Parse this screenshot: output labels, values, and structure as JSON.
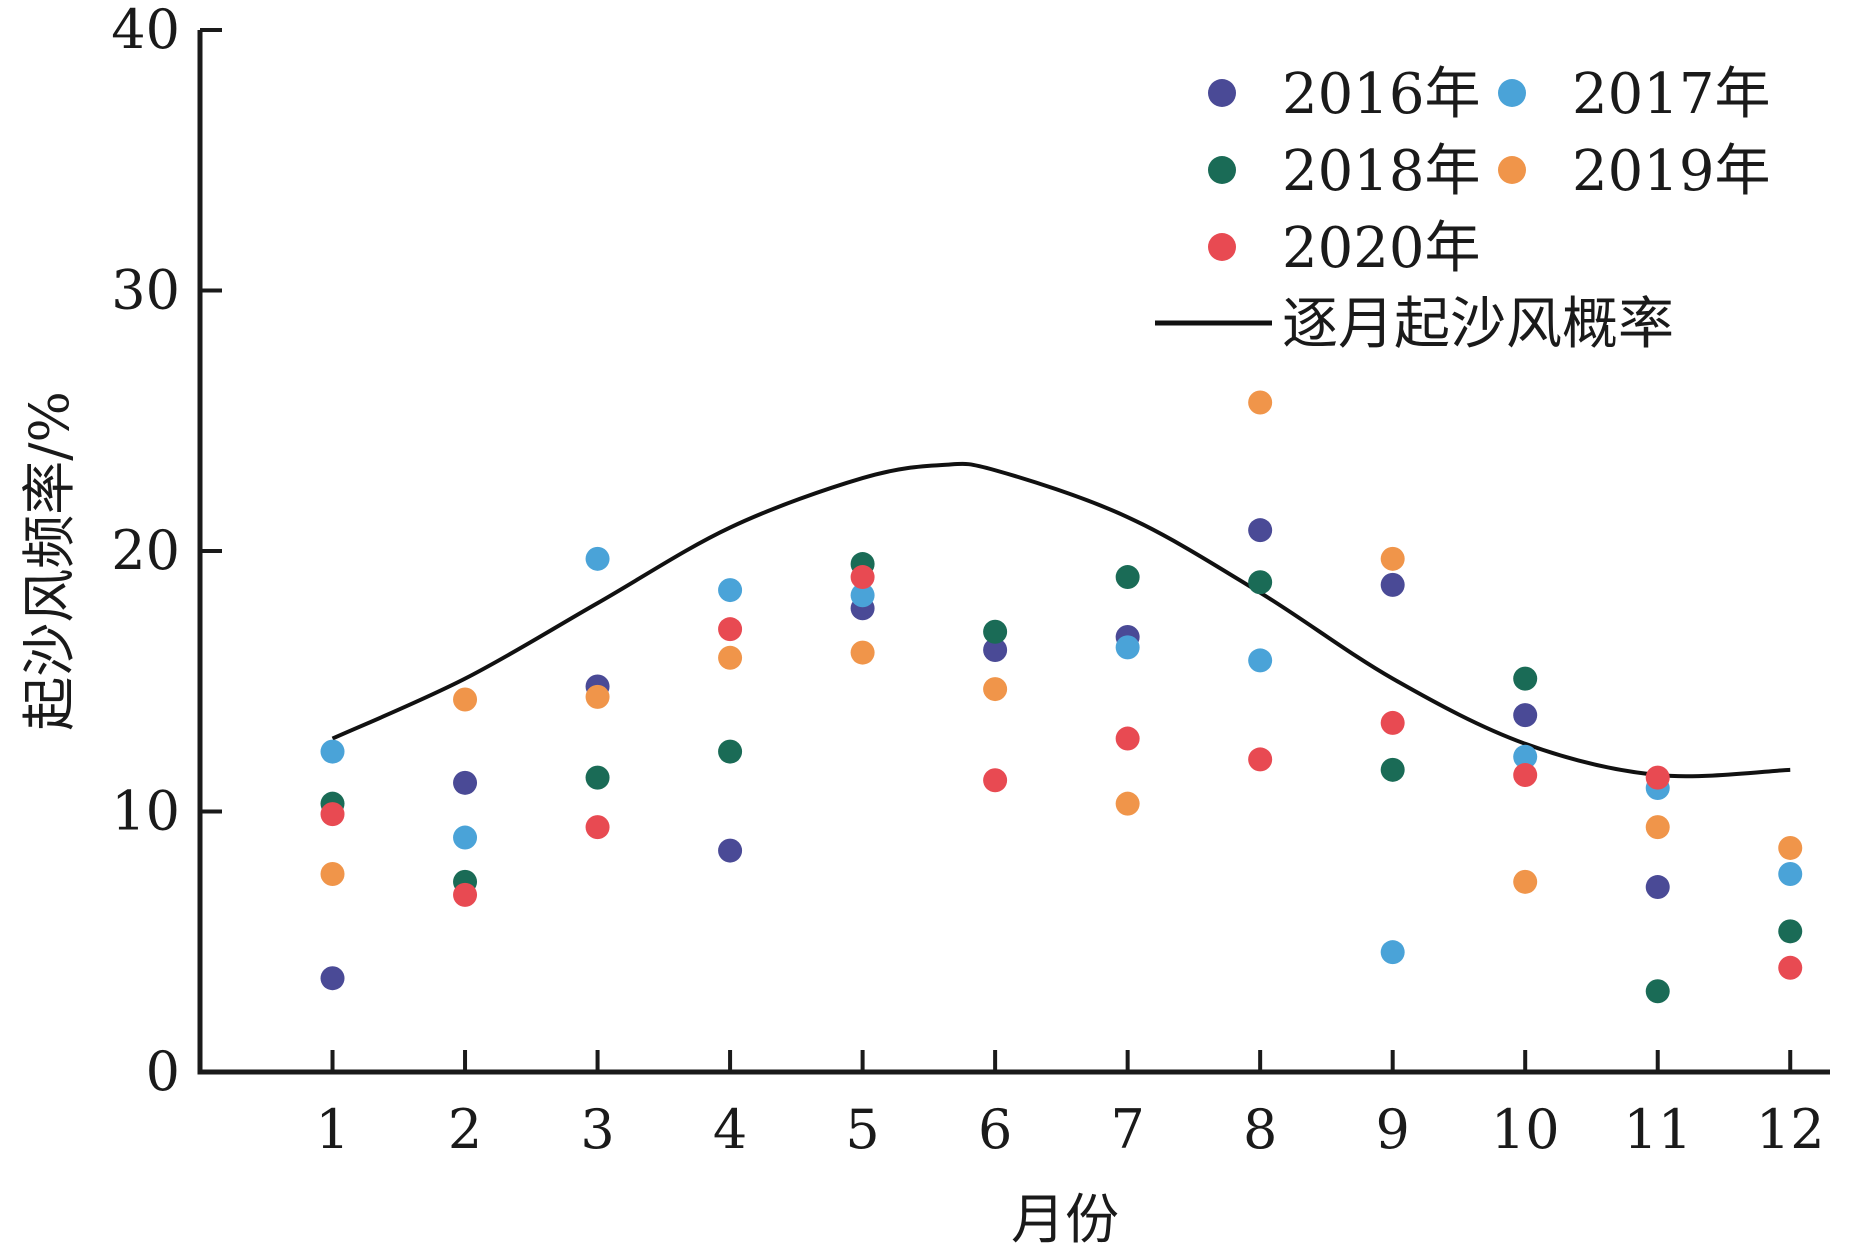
{
  "chart_data": {
    "type": "scatter",
    "xlabel": "月份",
    "ylabel": "起沙风频率/%",
    "xlim": [
      0,
      12.3
    ],
    "ylim": [
      0,
      40
    ],
    "x_ticks": [
      1,
      2,
      3,
      4,
      5,
      6,
      7,
      8,
      9,
      10,
      11,
      12
    ],
    "y_ticks": [
      0,
      10,
      20,
      30,
      40
    ],
    "legend_position": "top-right",
    "series": [
      {
        "name": "2016年",
        "color": "#4a4a96",
        "marker": "circle",
        "x": [
          1,
          2,
          3,
          4,
          5,
          6,
          7,
          8,
          9,
          10,
          11,
          12
        ],
        "y": [
          3.6,
          11.1,
          14.8,
          8.5,
          17.8,
          16.2,
          16.7,
          20.8,
          18.7,
          13.7,
          7.1,
          null
        ]
      },
      {
        "name": "2017年",
        "color": "#4aa3d8",
        "marker": "circle",
        "x": [
          1,
          2,
          3,
          4,
          5,
          6,
          7,
          8,
          9,
          10,
          11,
          12
        ],
        "y": [
          12.3,
          9.0,
          19.7,
          18.5,
          18.3,
          null,
          16.3,
          15.8,
          4.6,
          12.1,
          10.9,
          7.6
        ]
      },
      {
        "name": "2018年",
        "color": "#1a6b56",
        "marker": "circle",
        "x": [
          1,
          2,
          3,
          4,
          5,
          6,
          7,
          8,
          9,
          10,
          11,
          12
        ],
        "y": [
          10.3,
          7.3,
          11.3,
          12.3,
          19.5,
          16.9,
          19.0,
          18.8,
          11.6,
          15.1,
          3.1,
          5.4
        ]
      },
      {
        "name": "2019年",
        "color": "#f0954a",
        "marker": "circle",
        "x": [
          1,
          2,
          3,
          4,
          5,
          6,
          7,
          8,
          9,
          10,
          11,
          12
        ],
        "y": [
          7.6,
          14.3,
          14.4,
          15.9,
          16.1,
          14.7,
          10.3,
          25.7,
          19.7,
          7.3,
          9.4,
          8.6
        ]
      },
      {
        "name": "2020年",
        "color": "#e84a52",
        "marker": "circle",
        "x": [
          1,
          2,
          3,
          4,
          5,
          6,
          7,
          8,
          9,
          10,
          11,
          12
        ],
        "y": [
          9.9,
          6.8,
          9.4,
          17.0,
          19.0,
          11.2,
          12.8,
          12.0,
          13.4,
          11.4,
          11.3,
          4.0
        ]
      },
      {
        "name": "逐月起沙风概率",
        "color": "#111111",
        "marker": "line",
        "x": [
          1,
          2,
          3,
          4,
          5,
          5.6,
          6,
          7,
          8,
          9,
          10,
          11,
          12
        ],
        "y": [
          12.8,
          15.1,
          18.0,
          20.9,
          22.8,
          23.3,
          23.1,
          21.3,
          18.4,
          15.1,
          12.6,
          11.4,
          11.6
        ]
      }
    ]
  }
}
